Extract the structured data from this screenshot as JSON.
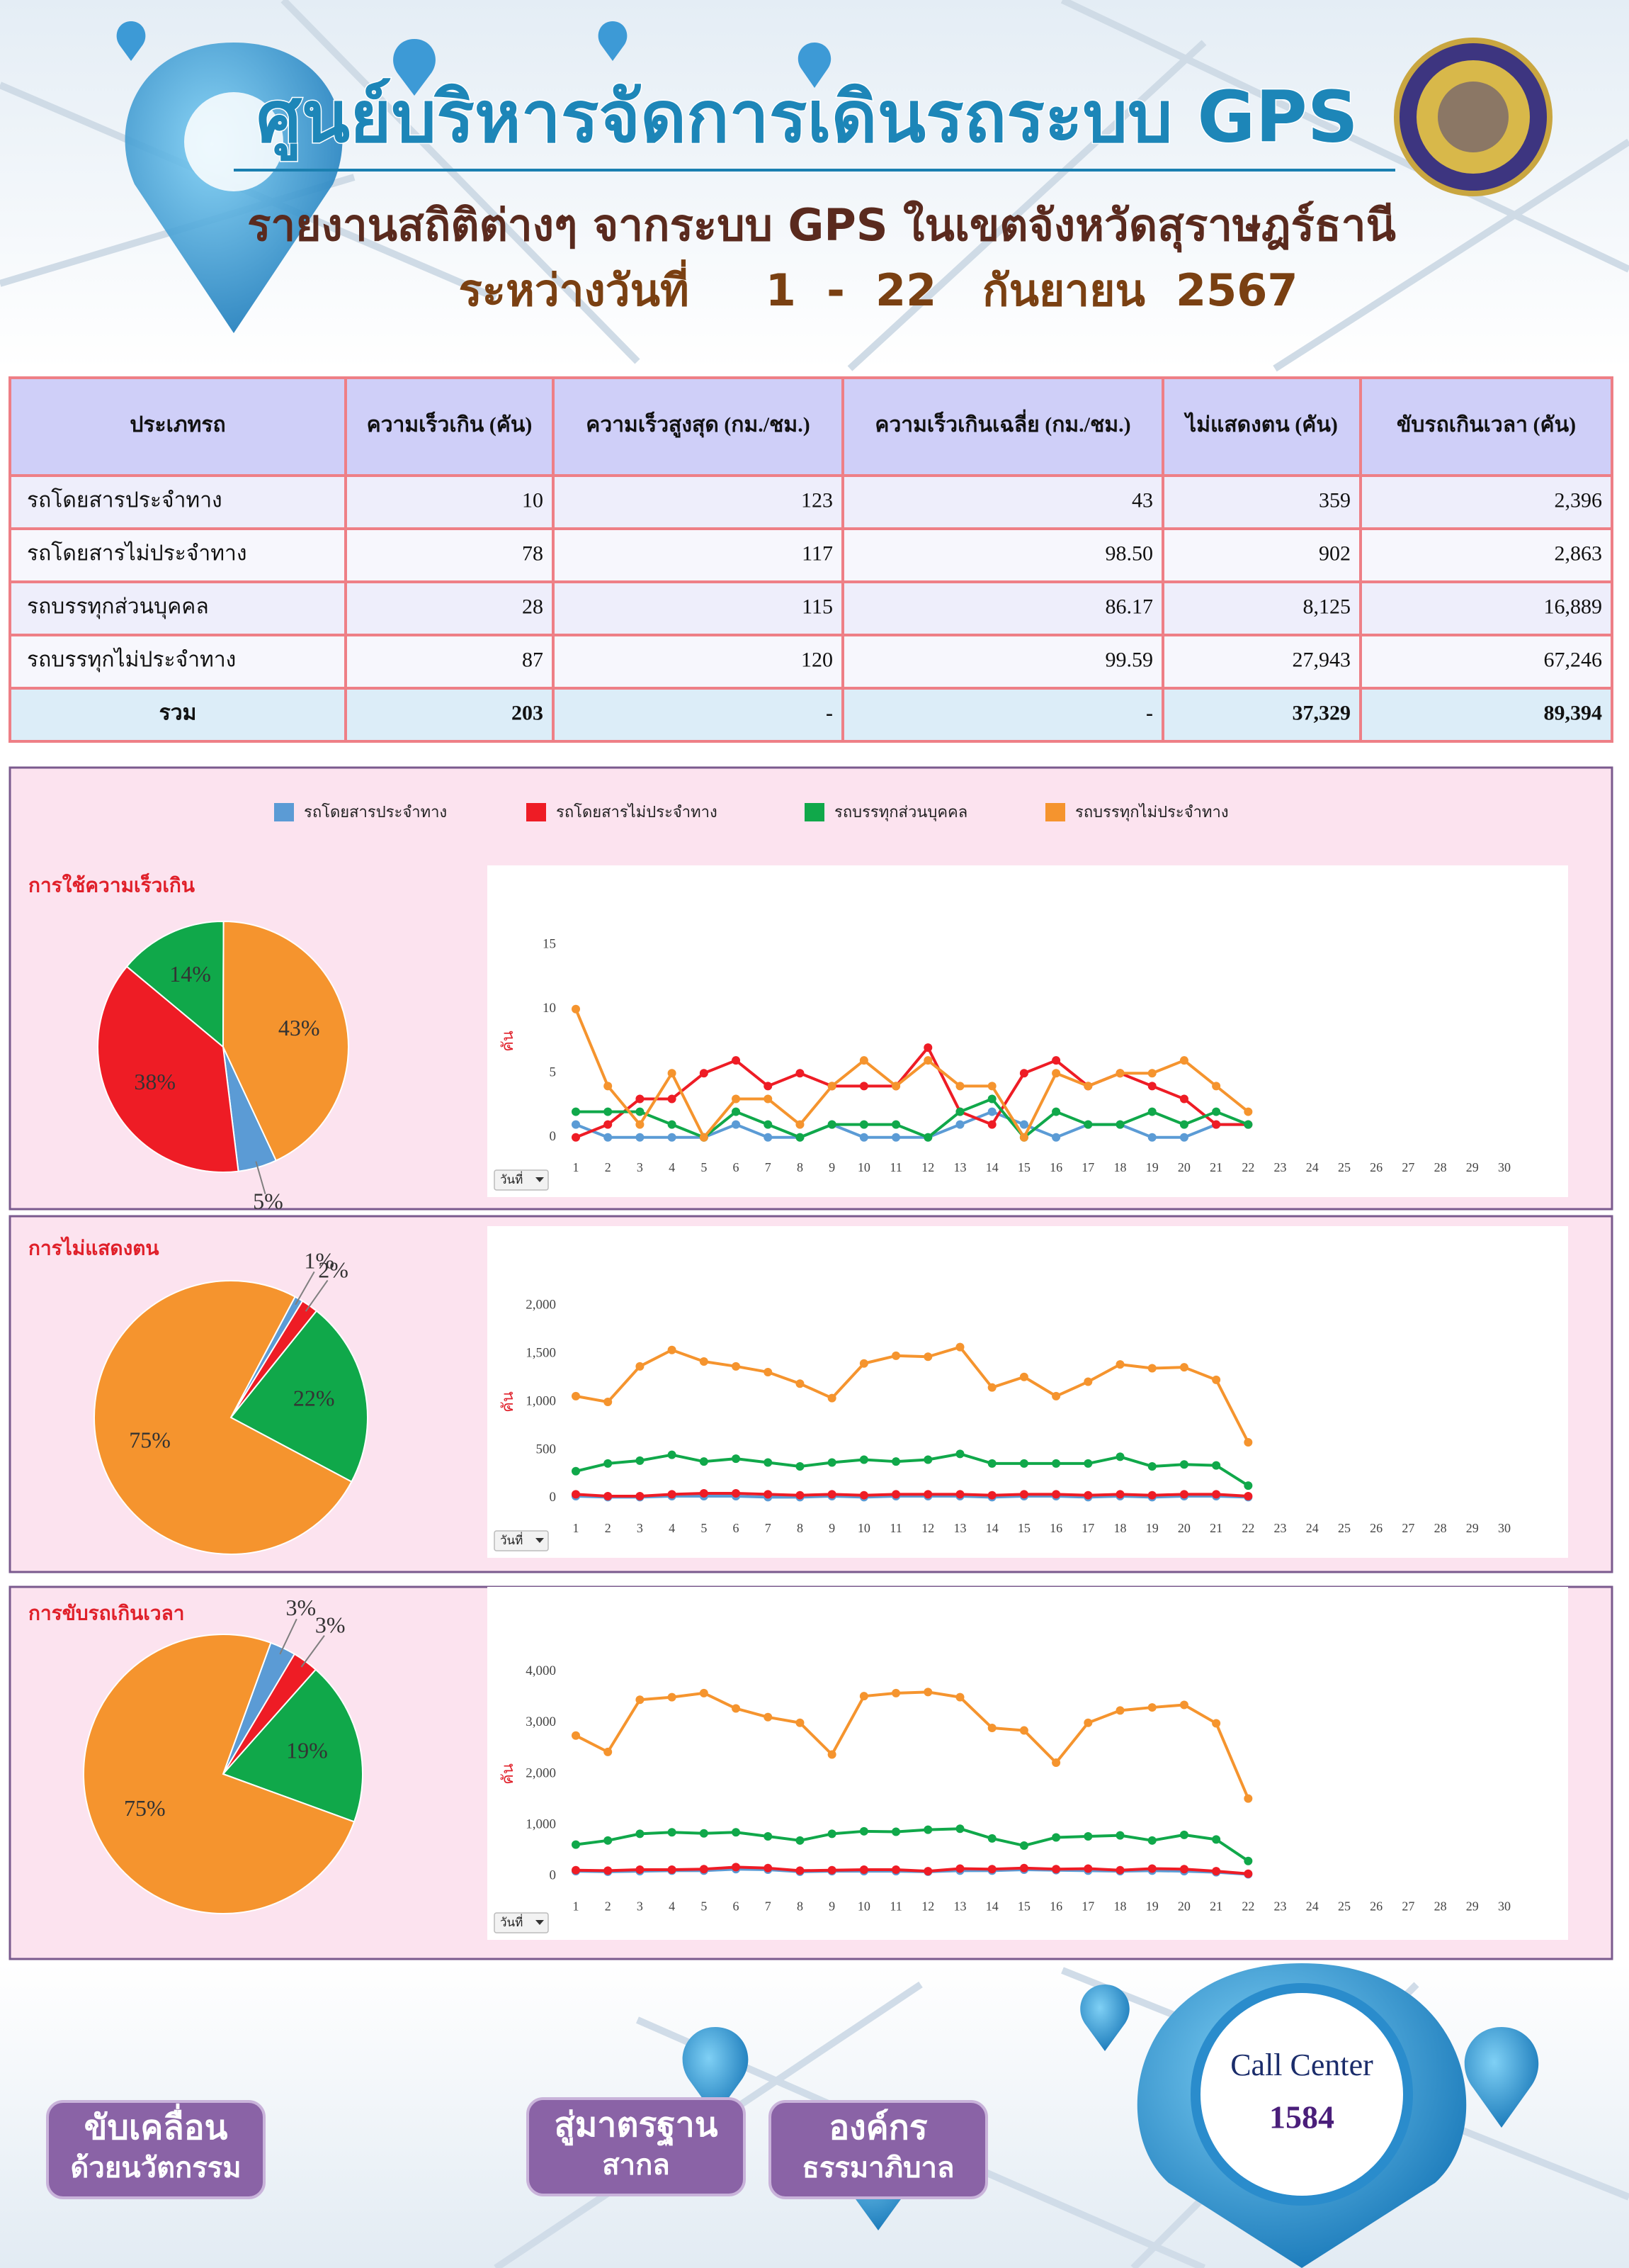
{
  "header": {
    "title": "ศูนย์บริหารจัดการเดินรถระบบ GPS",
    "subtitle": "รายงานสถิติต่างๆ จากระบบ GPS ในเขตจังหวัดสุราษฎร์ธานี",
    "period": "ระหว่างวันที่     1  -  22   กันยายน  2567"
  },
  "table": {
    "columns": [
      "ประเภทรถ",
      "ความเร็วเกิน (คัน)",
      "ความเร็วสูงสุด (กม./ชม.)",
      "ความเร็วเกินเฉลี่ย (กม./ชม.)",
      "ไม่แสดงตน (คัน)",
      "ขับรถเกินเวลา (คัน)"
    ],
    "rows": [
      [
        "รถโดยสารประจำทาง",
        "10",
        "123",
        "43",
        "359",
        "2,396"
      ],
      [
        "รถโดยสารไม่ประจำทาง",
        "78",
        "117",
        "98.50",
        "902",
        "2,863"
      ],
      [
        "รถบรรทุกส่วนบุคคล",
        "28",
        "115",
        "86.17",
        "8,125",
        "16,889"
      ],
      [
        "รถบรรทุกไม่ประจำทาง",
        "87",
        "120",
        "99.59",
        "27,943",
        "67,246"
      ]
    ],
    "total": [
      "รวม",
      "203",
      "-",
      "-",
      "37,329",
      "89,394"
    ]
  },
  "legend": [
    {
      "name": "รถโดยสารประจำทาง",
      "color": "#5b9bd5"
    },
    {
      "name": "รถโดยสารไม่ประจำทาง",
      "color": "#ee1c25"
    },
    {
      "name": "รถบรรทุกส่วนบุคคล",
      "color": "#10a84a"
    },
    {
      "name": "รถบรรทุกไม่ประจำทาง",
      "color": "#f5942e"
    }
  ],
  "chart_data": [
    {
      "type": "pie",
      "title": "การใช้ความเร็วเกิน",
      "values": [
        5,
        38,
        14,
        43
      ],
      "value_labels": [
        "5%",
        "38%",
        "14%",
        "43%"
      ]
    },
    {
      "type": "line",
      "y_label": "คัน",
      "filter_label": "วันที่",
      "categories": [
        "1",
        "2",
        "3",
        "4",
        "5",
        "6",
        "7",
        "8",
        "9",
        "10",
        "11",
        "12",
        "13",
        "14",
        "15",
        "16",
        "17",
        "18",
        "19",
        "20",
        "21",
        "22",
        "23",
        "24",
        "25",
        "26",
        "27",
        "28",
        "29",
        "30"
      ],
      "ylim": [
        0,
        15
      ],
      "yticks": [
        0,
        5,
        10,
        15
      ],
      "series": [
        {
          "values": [
            1,
            0,
            0,
            0,
            0,
            1,
            0,
            0,
            1,
            0,
            0,
            0,
            1,
            2,
            1,
            0,
            1,
            1,
            0,
            0,
            1,
            1,
            null,
            null,
            null,
            null,
            null,
            null,
            null,
            null
          ]
        },
        {
          "values": [
            0,
            1,
            3,
            3,
            5,
            6,
            4,
            5,
            4,
            4,
            4,
            7,
            2,
            1,
            5,
            6,
            4,
            5,
            4,
            3,
            1,
            1,
            null,
            null,
            null,
            null,
            null,
            null,
            null,
            null
          ]
        },
        {
          "values": [
            2,
            2,
            2,
            1,
            0,
            2,
            1,
            0,
            1,
            1,
            1,
            0,
            2,
            3,
            0,
            2,
            1,
            1,
            2,
            1,
            2,
            1,
            null,
            null,
            null,
            null,
            null,
            null,
            null,
            null
          ]
        },
        {
          "values": [
            10,
            4,
            1,
            5,
            0,
            3,
            3,
            1,
            4,
            6,
            4,
            6,
            4,
            4,
            0,
            5,
            4,
            5,
            5,
            6,
            4,
            2,
            null,
            null,
            null,
            null,
            null,
            null,
            null,
            null
          ]
        }
      ]
    },
    {
      "type": "pie",
      "title": "การไม่แสดงตน",
      "values": [
        1,
        2,
        22,
        75
      ],
      "value_labels": [
        "1%",
        "2%",
        "22%",
        "75%"
      ]
    },
    {
      "type": "line",
      "y_label": "คัน",
      "filter_label": "วันที่",
      "categories": [
        "1",
        "2",
        "3",
        "4",
        "5",
        "6",
        "7",
        "8",
        "9",
        "10",
        "11",
        "12",
        "13",
        "14",
        "15",
        "16",
        "17",
        "18",
        "19",
        "20",
        "21",
        "22",
        "23",
        "24",
        "25",
        "26",
        "27",
        "28",
        "29",
        "30"
      ],
      "ylim": [
        0,
        2000
      ],
      "yticks": [
        0,
        500,
        {
          "value": 1000,
          "label": "1,000"
        },
        {
          "value": 1500,
          "label": "1,500"
        },
        {
          "value": 2000,
          "label": "2,000"
        }
      ],
      "series": [
        {
          "values": [
            20,
            10,
            10,
            20,
            20,
            20,
            10,
            10,
            20,
            10,
            20,
            20,
            20,
            10,
            20,
            20,
            10,
            20,
            10,
            20,
            20,
            10,
            null,
            null,
            null,
            null,
            null,
            null,
            null,
            null
          ]
        },
        {
          "values": [
            40,
            20,
            20,
            40,
            50,
            50,
            40,
            30,
            40,
            30,
            40,
            40,
            40,
            30,
            40,
            40,
            30,
            40,
            30,
            40,
            40,
            20,
            null,
            null,
            null,
            null,
            null,
            null,
            null,
            null
          ]
        },
        {
          "values": [
            280,
            360,
            390,
            450,
            380,
            410,
            370,
            330,
            370,
            400,
            380,
            400,
            460,
            360,
            360,
            360,
            360,
            430,
            330,
            350,
            340,
            130,
            null,
            null,
            null,
            null,
            null,
            null,
            null,
            null
          ]
        },
        {
          "values": [
            1060,
            1000,
            1370,
            1540,
            1420,
            1370,
            1310,
            1190,
            1040,
            1400,
            1480,
            1470,
            1570,
            1150,
            1260,
            1060,
            1210,
            1390,
            1350,
            1360,
            1230,
            580,
            null,
            null,
            null,
            null,
            null,
            null,
            null,
            null
          ]
        }
      ]
    },
    {
      "type": "pie",
      "title": "การขับรถเกินเวลา",
      "values": [
        3,
        3,
        19,
        75
      ],
      "value_labels": [
        "3%",
        "3%",
        "19%",
        "75%"
      ]
    },
    {
      "type": "line",
      "y_label": "คัน",
      "filter_label": "วันที่",
      "categories": [
        "1",
        "2",
        "3",
        "4",
        "5",
        "6",
        "7",
        "8",
        "9",
        "10",
        "11",
        "12",
        "13",
        "14",
        "15",
        "16",
        "17",
        "18",
        "19",
        "20",
        "21",
        "22",
        "23",
        "24",
        "25",
        "26",
        "27",
        "28",
        "29",
        "30"
      ],
      "ylim": [
        0,
        4000
      ],
      "yticks": [
        0,
        {
          "value": 1000,
          "label": "1,000"
        },
        {
          "value": 2000,
          "label": "2,000"
        },
        {
          "value": 3000,
          "label": "3,000"
        },
        {
          "value": 4000,
          "label": "4,000"
        }
      ],
      "series": [
        {
          "values": [
            100,
            90,
            100,
            110,
            110,
            140,
            130,
            90,
            100,
            100,
            100,
            90,
            110,
            110,
            130,
            120,
            110,
            100,
            110,
            100,
            80,
            40,
            null,
            null,
            null,
            null,
            null,
            null,
            null,
            null
          ]
        },
        {
          "values": [
            120,
            110,
            130,
            130,
            140,
            180,
            160,
            110,
            120,
            130,
            130,
            100,
            150,
            140,
            160,
            140,
            150,
            120,
            150,
            140,
            100,
            50,
            null,
            null,
            null,
            null,
            null,
            null,
            null,
            null
          ]
        },
        {
          "values": [
            620,
            700,
            830,
            860,
            840,
            860,
            780,
            700,
            830,
            880,
            870,
            910,
            930,
            740,
            600,
            760,
            780,
            800,
            700,
            810,
            720,
            300,
            null,
            null,
            null,
            null,
            null,
            null,
            null,
            null
          ]
        },
        {
          "values": [
            2750,
            2430,
            3450,
            3500,
            3580,
            3280,
            3110,
            3000,
            2380,
            3520,
            3580,
            3600,
            3500,
            2900,
            2850,
            2220,
            3000,
            3240,
            3300,
            3350,
            2990,
            1520,
            null,
            null,
            null,
            null,
            null,
            null,
            null,
            null
          ]
        }
      ]
    }
  ],
  "footer": {
    "badges": [
      [
        "ขับเคลื่อน",
        "ด้วยนวัตกรรม"
      ],
      [
        "สู่มาตรฐาน",
        "สากล"
      ],
      [
        "องค์กร",
        "ธรรมาภิบาล"
      ]
    ],
    "call_center": {
      "label": "Call Center",
      "number": "1584"
    }
  }
}
